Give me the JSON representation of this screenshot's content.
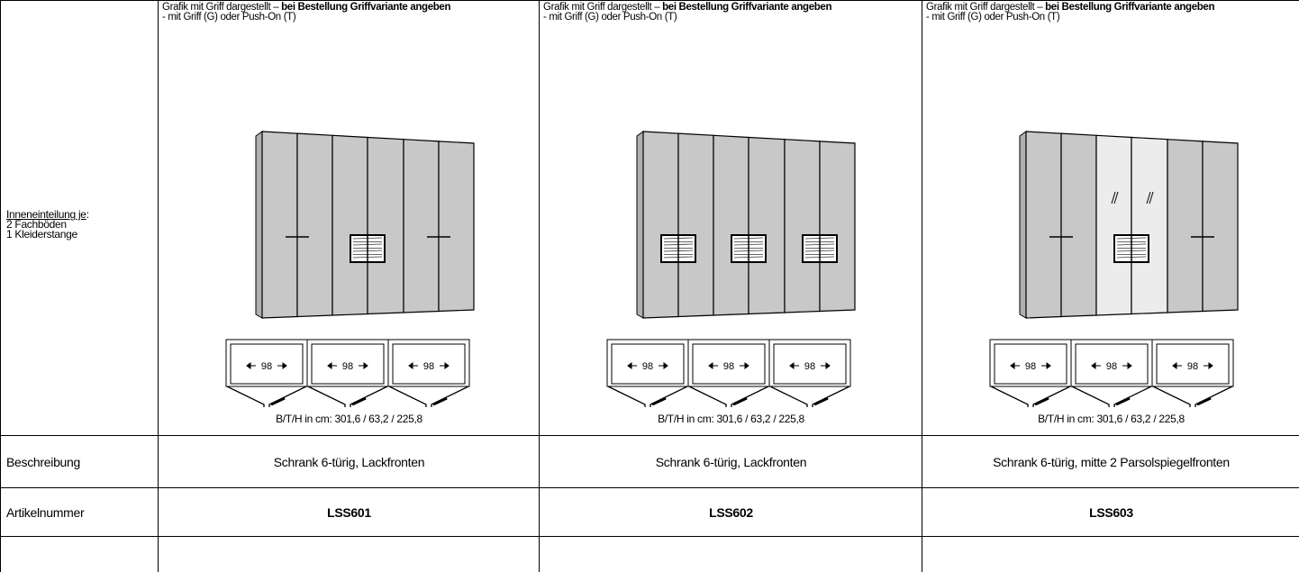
{
  "left": {
    "label_underlined": "Inneneinteilung je",
    "label_suffix": ":",
    "lines": [
      "2 Fachböden",
      "1 Kleiderstange"
    ]
  },
  "row_labels": {
    "description": "Beschreibung",
    "article": "Artikelnummer"
  },
  "products": [
    {
      "note": {
        "text": "Grafik mit Griff dargestellt – ",
        "bold": "bei Bestellung Griffvariante angeben",
        "line2": "- mit Griff (G) oder Push-On (T)"
      },
      "widths": [
        98,
        98,
        98
      ],
      "dimensions": "B/T/H in cm: 301,6 / 63,2 / 225,8",
      "description": "Schrank 6-türig, Lackfronten",
      "article": "LSS601"
    },
    {
      "note": {
        "text": "Grafik mit Griff dargestellt – ",
        "bold": "bei Bestellung Griffvariante angeben",
        "line2": "- mit Griff (G) oder Push-On (T)"
      },
      "widths": [
        98,
        98,
        98
      ],
      "dimensions": "B/T/H in cm: 301,6 / 63,2 / 225,8",
      "description": "Schrank 6-türig, Lackfronten",
      "article": "LSS602"
    },
    {
      "note": {
        "text": "Grafik mit Griff dargestellt – ",
        "bold": "bei Bestellung Griffvariante angeben",
        "line2": "- mit Griff (G) oder Push-On (T)"
      },
      "widths": [
        98,
        98,
        98
      ],
      "dimensions": "B/T/H in cm: 301,6 / 63,2 / 225,8",
      "description": "Schrank 6-türig, mitte 2 Parsolspiegelfronten",
      "article": "LSS603"
    }
  ]
}
